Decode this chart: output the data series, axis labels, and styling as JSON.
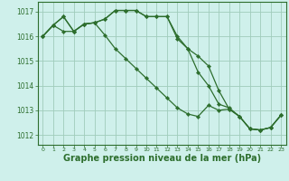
{
  "background_color": "#cff0eb",
  "grid_color": "#a0ccbb",
  "line_color": "#2d6e2d",
  "marker_color": "#2d6e2d",
  "xlabel": "Graphe pression niveau de la mer (hPa)",
  "xlabel_fontsize": 7.0,
  "ylim": [
    1011.6,
    1017.4
  ],
  "yticks": [
    1012,
    1013,
    1014,
    1015,
    1016,
    1017
  ],
  "xlim": [
    -0.5,
    23.5
  ],
  "xticks": [
    0,
    1,
    2,
    3,
    4,
    5,
    6,
    7,
    8,
    9,
    10,
    11,
    12,
    13,
    14,
    15,
    16,
    17,
    18,
    19,
    20,
    21,
    22,
    23
  ],
  "series1": [
    1016.0,
    1016.45,
    1016.8,
    1016.2,
    1016.5,
    1016.55,
    1016.7,
    1017.05,
    1017.05,
    1017.05,
    1016.8,
    1016.8,
    1016.8,
    1015.9,
    1015.5,
    1015.2,
    1014.8,
    1013.8,
    1013.05,
    1012.75,
    1012.25,
    1012.2,
    1012.3,
    1012.8
  ],
  "series2": [
    1016.0,
    1016.45,
    1016.8,
    1016.2,
    1016.5,
    1016.55,
    1016.7,
    1017.05,
    1017.05,
    1017.05,
    1016.8,
    1016.8,
    1016.8,
    1016.0,
    1015.5,
    1014.55,
    1014.0,
    1013.25,
    1013.1,
    1012.75,
    1012.25,
    1012.2,
    1012.3,
    1012.8
  ],
  "series3": [
    1016.0,
    1016.45,
    1016.2,
    1016.2,
    1016.5,
    1016.55,
    1016.05,
    1015.5,
    1015.1,
    1014.7,
    1014.3,
    1013.9,
    1013.5,
    1013.1,
    1012.85,
    1012.75,
    1013.2,
    1013.0,
    1013.05,
    1012.75,
    1012.25,
    1012.2,
    1012.3,
    1012.8
  ]
}
